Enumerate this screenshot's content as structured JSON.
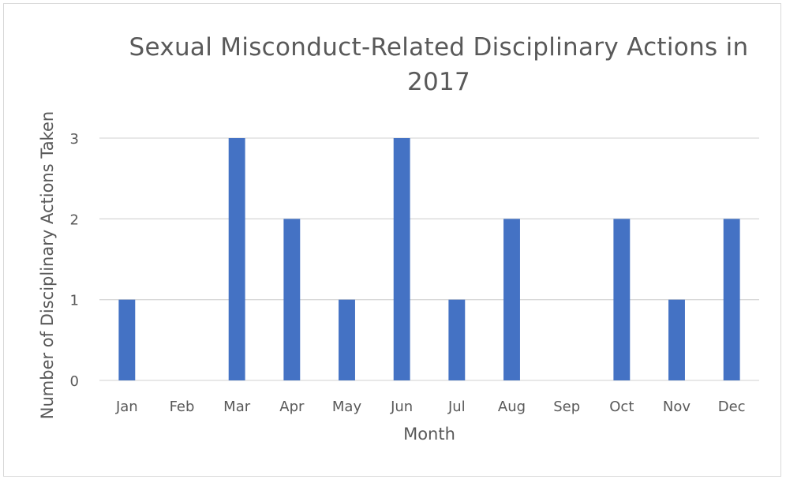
{
  "chart_data": {
    "type": "bar",
    "title": "Sexual Misconduct-Related  Disciplinary Actions in 2017",
    "xlabel": "Month",
    "ylabel": "Number of Disciplinary Actions Taken",
    "categories": [
      "Jan",
      "Feb",
      "Mar",
      "Apr",
      "May",
      "Jun",
      "Jul",
      "Aug",
      "Sep",
      "Oct",
      "Nov",
      "Dec"
    ],
    "values": [
      1,
      0,
      3,
      2,
      1,
      3,
      1,
      2,
      0,
      2,
      1,
      2
    ],
    "ylim": [
      0,
      3
    ],
    "yticks": [
      "0",
      "1",
      "2",
      "3"
    ],
    "grid": true,
    "legend": "none",
    "bar_color": "#4472C4",
    "grid_color": "#d9d9d9"
  }
}
